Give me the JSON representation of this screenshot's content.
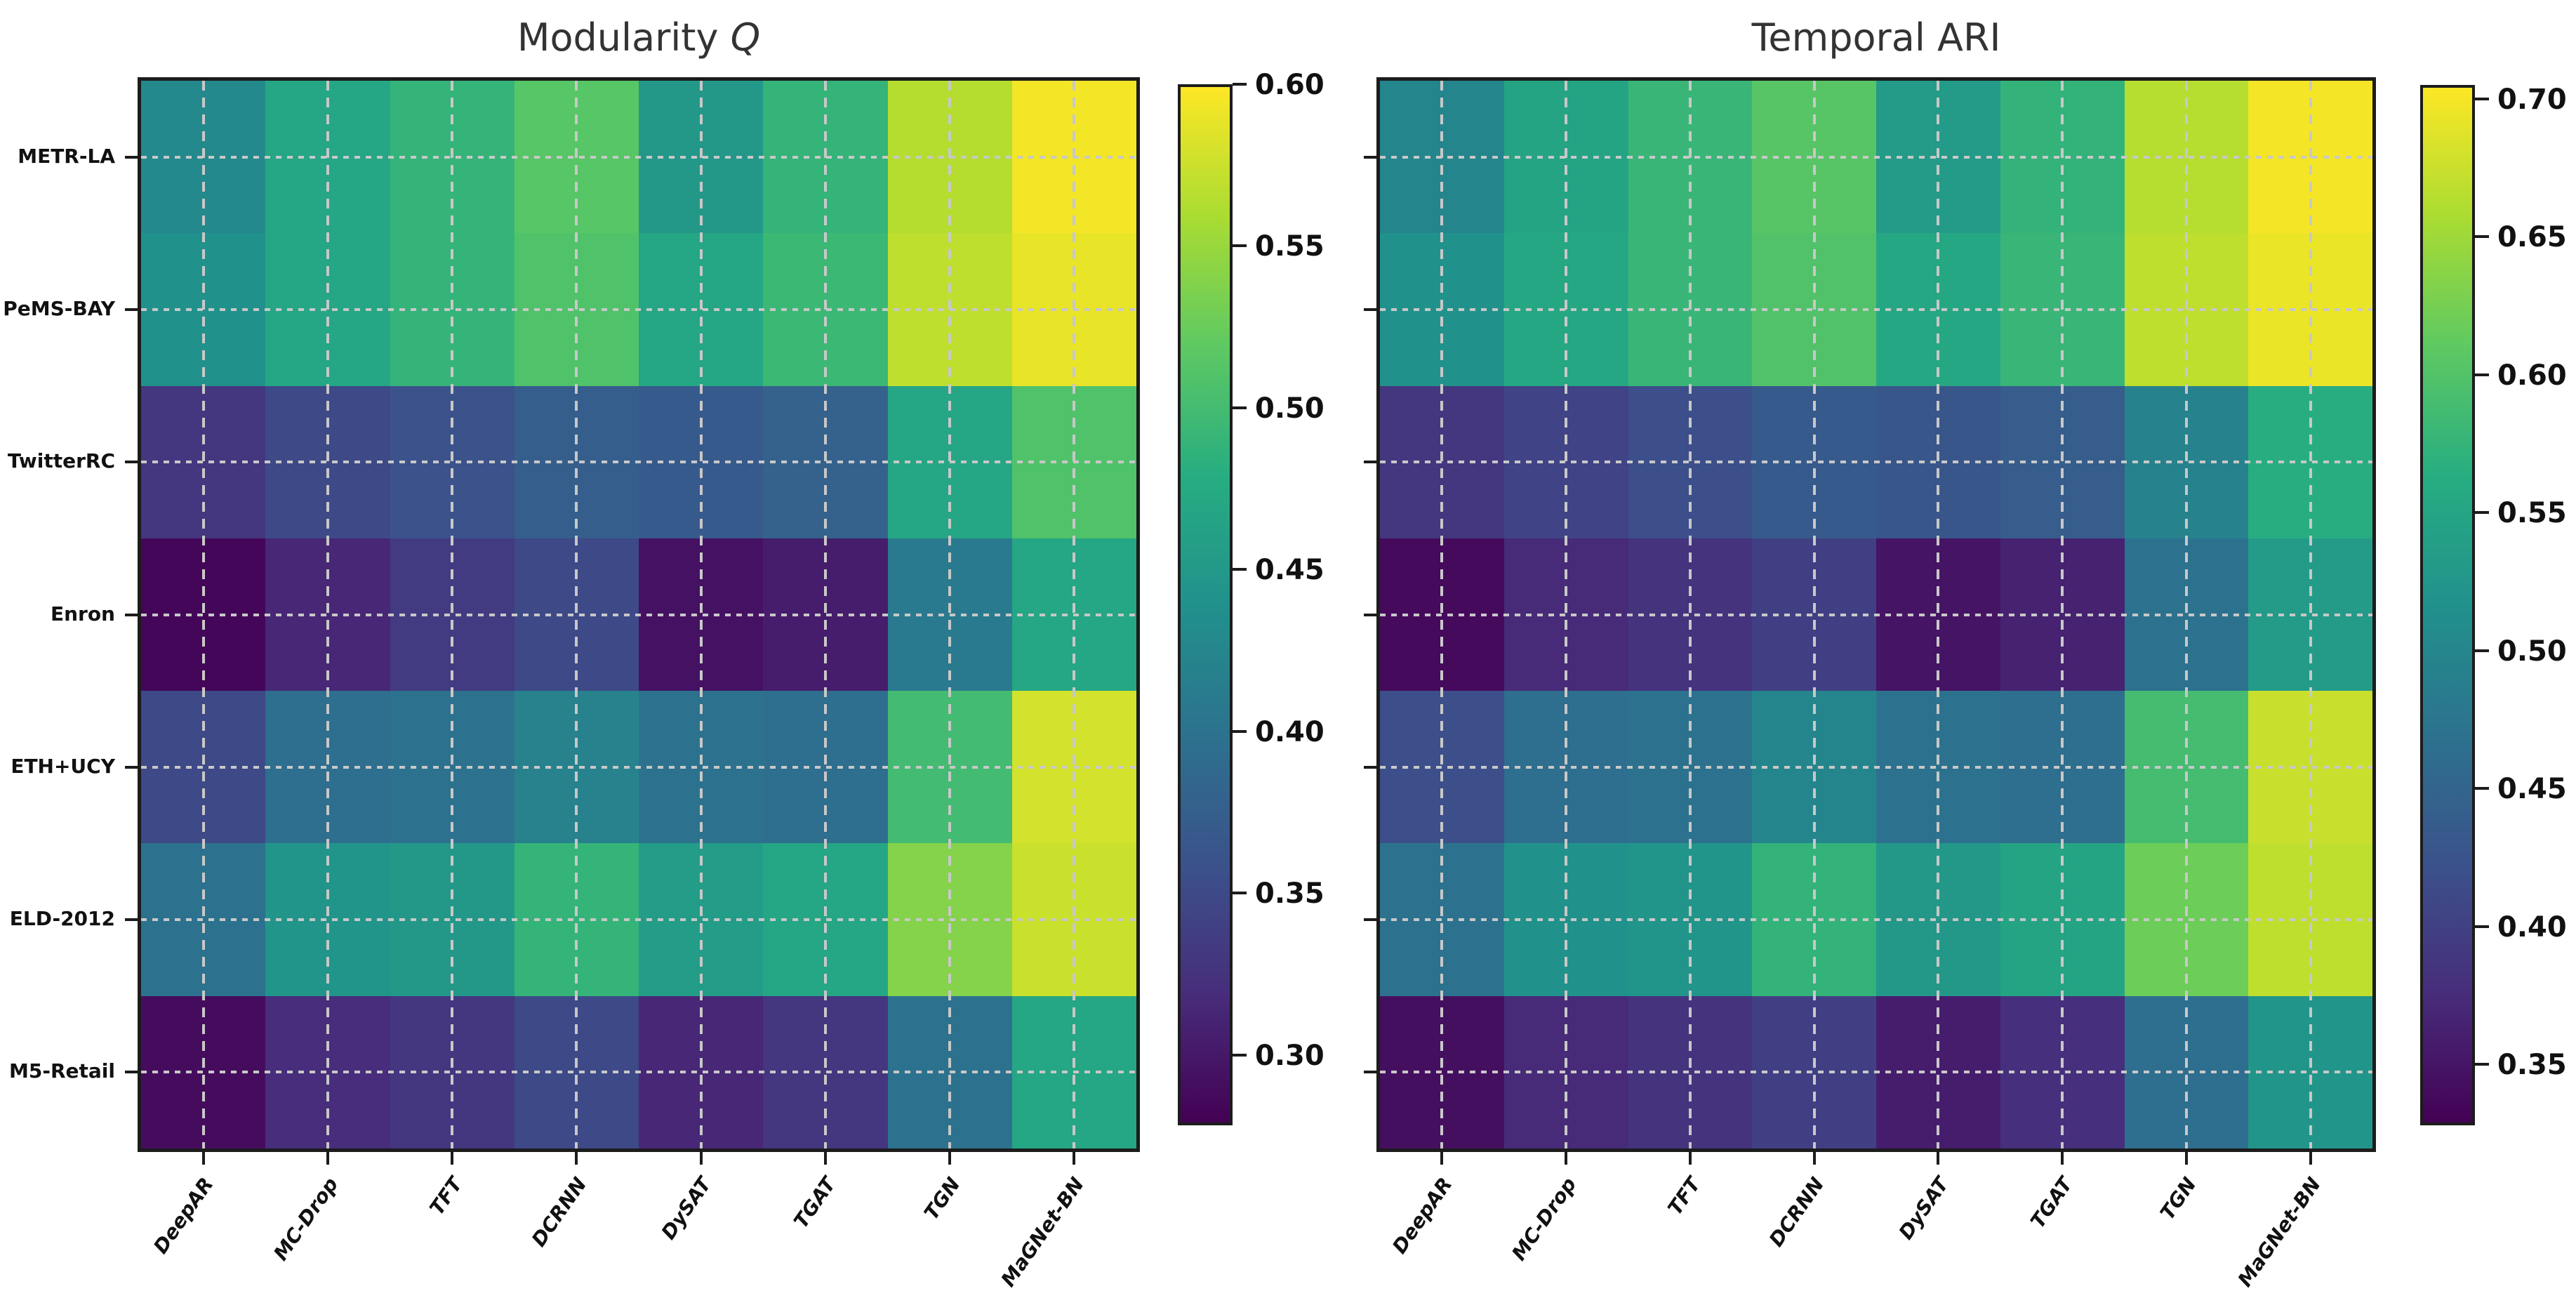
{
  "figure": {
    "background": "#ffffff",
    "grid_color": "#c8c8c8",
    "spine_color": "#1c1c1c",
    "title_color": "#333333"
  },
  "panels": [
    {
      "id": "left",
      "title_main": "Modularity ",
      "title_italic": "Q",
      "colorbar_tick_labels": [
        "0.60",
        "0.55",
        "0.50",
        "0.45",
        "0.40",
        "0.35",
        "0.30"
      ]
    },
    {
      "id": "right",
      "title_main": "Temporal ARI",
      "title_italic": "",
      "colorbar_tick_labels": [
        "0.70",
        "0.65",
        "0.60",
        "0.55",
        "0.50",
        "0.45",
        "0.40",
        "0.35"
      ]
    }
  ],
  "chart_data": [
    {
      "type": "heatmap",
      "title": "Modularity Q",
      "rows": [
        "METR-LA",
        "PeMS-BAY",
        "TwitterRC",
        "Enron",
        "ETH+UCY",
        "ELD-2012",
        "M5-Retail"
      ],
      "columns": [
        "DeepAR",
        "MC-Drop",
        "TFT",
        "DCRNN",
        "DySAT",
        "TGAT",
        "TGN",
        "MaGNet-BN"
      ],
      "values": [
        [
          0.43,
          0.47,
          0.49,
          0.515,
          0.45,
          0.49,
          0.565,
          0.595
        ],
        [
          0.44,
          0.47,
          0.49,
          0.51,
          0.47,
          0.495,
          0.57,
          0.59
        ],
        [
          0.33,
          0.35,
          0.36,
          0.375,
          0.37,
          0.38,
          0.47,
          0.51
        ],
        [
          0.285,
          0.315,
          0.335,
          0.35,
          0.295,
          0.305,
          0.41,
          0.47
        ],
        [
          0.35,
          0.395,
          0.4,
          0.42,
          0.4,
          0.395,
          0.5,
          0.58
        ],
        [
          0.4,
          0.445,
          0.45,
          0.49,
          0.455,
          0.47,
          0.54,
          0.575
        ],
        [
          0.29,
          0.32,
          0.33,
          0.35,
          0.315,
          0.33,
          0.4,
          0.47
        ]
      ],
      "vmin": 0.28,
      "vmax": 0.6,
      "colormap": "viridis",
      "colorbar_ticks": [
        0.6,
        0.55,
        0.5,
        0.45,
        0.4,
        0.35,
        0.3
      ],
      "grid": true,
      "legend_position": "right-colorbar"
    },
    {
      "type": "heatmap",
      "title": "Temporal ARI",
      "rows": [
        "METR-LA",
        "PeMS-BAY",
        "TwitterRC",
        "Enron",
        "ETH+UCY",
        "ELD-2012",
        "M5-Retail"
      ],
      "columns": [
        "DeepAR",
        "MC-Drop",
        "TFT",
        "DCRNN",
        "DySAT",
        "TGAT",
        "TGN",
        "MaGNet-BN"
      ],
      "values": [
        [
          0.5,
          0.55,
          0.58,
          0.605,
          0.535,
          0.575,
          0.665,
          0.7
        ],
        [
          0.52,
          0.555,
          0.58,
          0.6,
          0.555,
          0.58,
          0.67,
          0.695
        ],
        [
          0.39,
          0.405,
          0.42,
          0.435,
          0.43,
          0.44,
          0.495,
          0.565
        ],
        [
          0.34,
          0.375,
          0.385,
          0.4,
          0.35,
          0.365,
          0.47,
          0.535
        ],
        [
          0.42,
          0.465,
          0.47,
          0.5,
          0.47,
          0.465,
          0.59,
          0.675
        ],
        [
          0.47,
          0.52,
          0.525,
          0.575,
          0.53,
          0.55,
          0.62,
          0.67
        ],
        [
          0.345,
          0.375,
          0.385,
          0.4,
          0.36,
          0.38,
          0.465,
          0.525
        ]
      ],
      "vmin": 0.33,
      "vmax": 0.705,
      "colormap": "viridis",
      "colorbar_ticks": [
        0.7,
        0.65,
        0.6,
        0.55,
        0.5,
        0.45,
        0.4,
        0.35
      ],
      "grid": true,
      "legend_position": "right-colorbar"
    }
  ]
}
